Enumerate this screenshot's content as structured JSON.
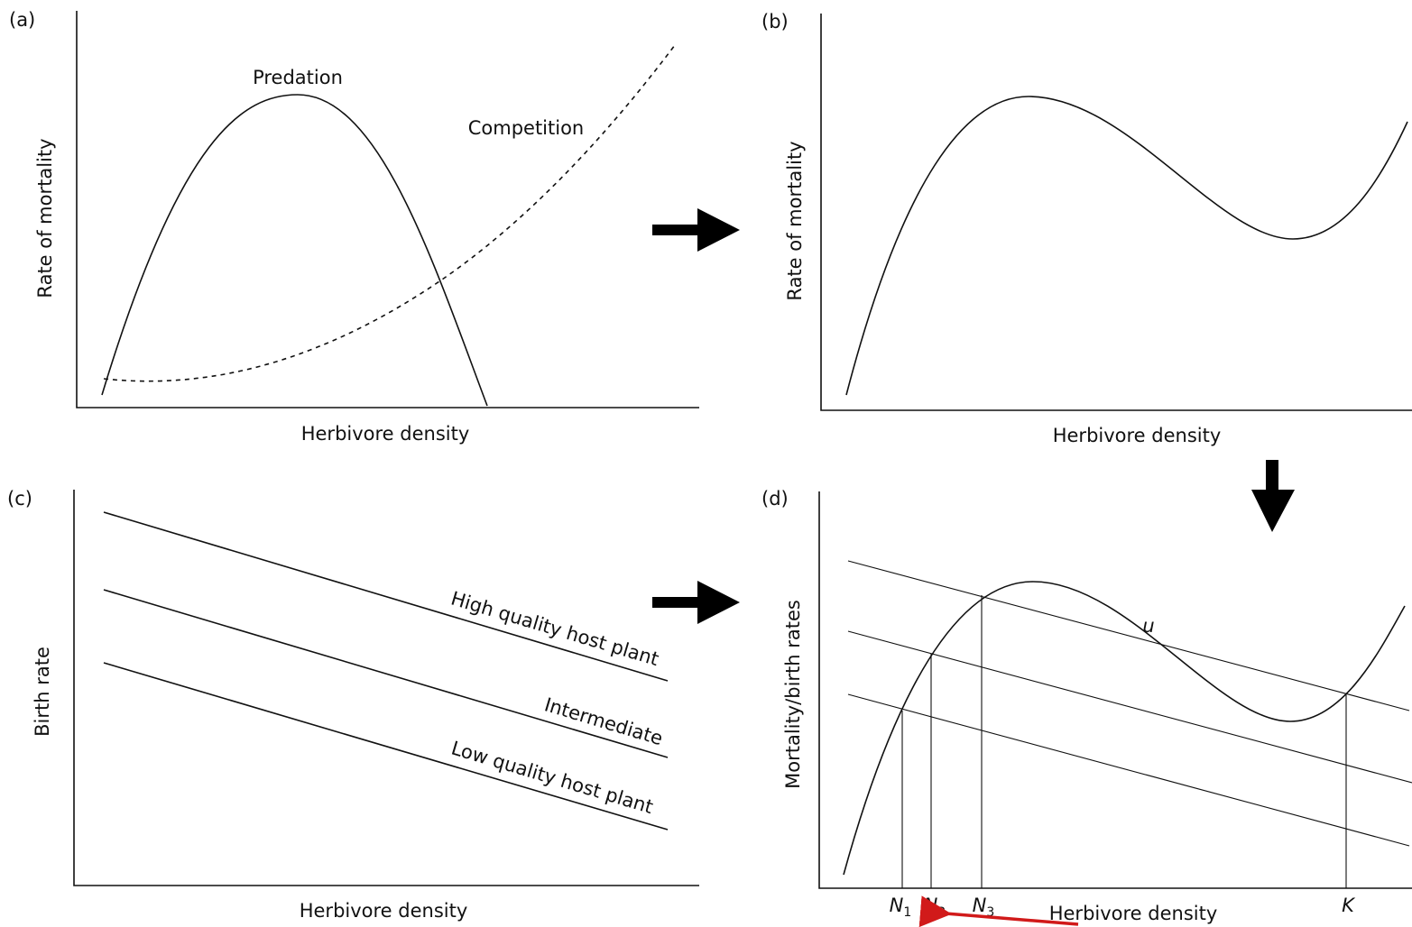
{
  "panels": [
    {
      "tag": "(a)",
      "y_label": "Rate of mortality",
      "x_label": "Herbivore density",
      "curves": [
        "Predation",
        "Competition"
      ]
    },
    {
      "tag": "(b)",
      "y_label": "Rate of mortality",
      "x_label": "Herbivore density"
    },
    {
      "tag": "(c)",
      "y_label": "Birth rate",
      "x_label": "Herbivore density",
      "lines": [
        "High quality host plant",
        "Intermediate",
        "Low quality host plant"
      ]
    },
    {
      "tag": "(d)",
      "y_label": "Mortality/birth rates",
      "x_label": "Herbivore density",
      "point": "u",
      "markers": [
        {
          "symbol": "N",
          "subscript": "1"
        },
        {
          "symbol": "N",
          "subscript": "2"
        },
        {
          "symbol": "N",
          "subscript": "3"
        },
        {
          "symbol": "K"
        }
      ]
    }
  ]
}
